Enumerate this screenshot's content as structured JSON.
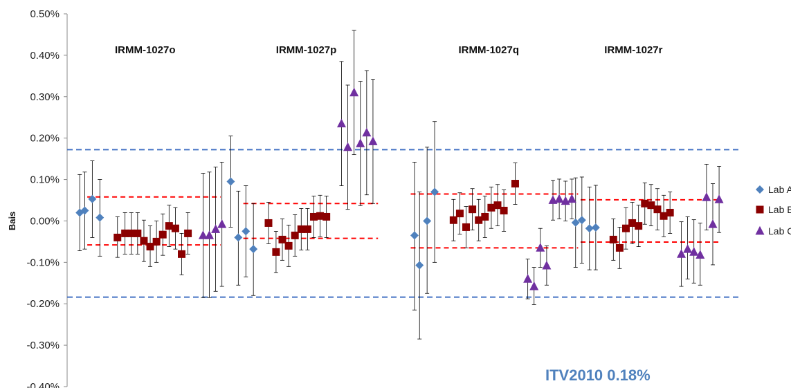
{
  "chart_data": {
    "type": "scatter",
    "ylabel": "Bais",
    "ylim": [
      -0.4,
      0.5
    ],
    "yticks": [
      -0.4,
      -0.3,
      -0.2,
      -0.1,
      0.0,
      0.1,
      0.2,
      0.3,
      0.4,
      0.5
    ],
    "ytick_labels": [
      "-0.40%",
      "-0.30%",
      "-0.20%",
      "-0.10%",
      "0.00%",
      "0.10%",
      "0.20%",
      "0.30%",
      "0.40%",
      "0.50%"
    ],
    "groups": [
      "IRMM-1027o",
      "IRMM-1027p",
      "IRMM-1027q",
      "IRMM-1027r"
    ],
    "annotation": "ITV2010 0.18%",
    "legend_position": "right",
    "colors": {
      "lab_a": "#4f81bd",
      "lab_b": "#8b0000",
      "lab_c": "#7030a0",
      "itv_line": "#4472c4",
      "lab_limit_line": "#ff0000",
      "error_bar": "#000000",
      "annotation": "#4f81bd"
    },
    "itv_limits": [
      0.172,
      -0.184
    ],
    "lab_limits": [
      {
        "group": "IRMM-1027o",
        "upper": 0.058,
        "lower": -0.058
      },
      {
        "group": "IRMM-1027p",
        "upper": 0.042,
        "lower": -0.042
      },
      {
        "group": "IRMM-1027q",
        "upper": 0.065,
        "lower": -0.065
      },
      {
        "group": "IRMM-1027r",
        "upper": 0.051,
        "lower": -0.051
      }
    ],
    "series": [
      {
        "name": "Lab A",
        "marker": "diamond",
        "points": [
          {
            "x": 1.0,
            "y": 0.02,
            "lo": -0.072,
            "hi": 0.112
          },
          {
            "x": 1.4,
            "y": 0.025,
            "lo": -0.068,
            "hi": 0.118
          },
          {
            "x": 2.0,
            "y": 0.053,
            "lo": -0.04,
            "hi": 0.145
          },
          {
            "x": 2.6,
            "y": 0.008,
            "lo": -0.085,
            "hi": 0.1
          },
          {
            "x": 13.0,
            "y": 0.095,
            "lo": -0.015,
            "hi": 0.205
          },
          {
            "x": 13.6,
            "y": -0.04,
            "lo": -0.155,
            "hi": 0.072
          },
          {
            "x": 14.2,
            "y": -0.025,
            "lo": -0.135,
            "hi": 0.085
          },
          {
            "x": 14.8,
            "y": -0.068,
            "lo": -0.18,
            "hi": 0.042
          },
          {
            "x": 27.6,
            "y": -0.035,
            "lo": -0.215,
            "hi": 0.142
          },
          {
            "x": 28.0,
            "y": -0.107,
            "lo": -0.285,
            "hi": 0.07
          },
          {
            "x": 28.6,
            "y": 0.0,
            "lo": -0.175,
            "hi": 0.178
          },
          {
            "x": 29.2,
            "y": 0.07,
            "lo": -0.1,
            "hi": 0.24
          },
          {
            "x": 40.4,
            "y": -0.004,
            "lo": -0.112,
            "hi": 0.104
          },
          {
            "x": 40.9,
            "y": 0.002,
            "lo": -0.102,
            "hi": 0.106
          },
          {
            "x": 41.5,
            "y": -0.018,
            "lo": -0.118,
            "hi": 0.082
          },
          {
            "x": 42.0,
            "y": -0.016,
            "lo": -0.118,
            "hi": 0.086
          }
        ]
      },
      {
        "name": "Lab B",
        "marker": "square",
        "points": [
          {
            "x": 4.0,
            "y": -0.04,
            "lo": -0.088,
            "hi": 0.01
          },
          {
            "x": 4.6,
            "y": -0.03,
            "lo": -0.08,
            "hi": 0.02
          },
          {
            "x": 5.1,
            "y": -0.03,
            "lo": -0.08,
            "hi": 0.02
          },
          {
            "x": 5.6,
            "y": -0.03,
            "lo": -0.08,
            "hi": 0.02
          },
          {
            "x": 6.1,
            "y": -0.048,
            "lo": -0.098,
            "hi": 0.002
          },
          {
            "x": 6.6,
            "y": -0.062,
            "lo": -0.11,
            "hi": -0.012
          },
          {
            "x": 7.1,
            "y": -0.05,
            "lo": -0.1,
            "hi": 0.0
          },
          {
            "x": 7.6,
            "y": -0.033,
            "lo": -0.083,
            "hi": 0.017
          },
          {
            "x": 8.1,
            "y": -0.012,
            "lo": -0.062,
            "hi": 0.038
          },
          {
            "x": 8.6,
            "y": -0.018,
            "lo": -0.068,
            "hi": 0.032
          },
          {
            "x": 9.1,
            "y": -0.08,
            "lo": -0.13,
            "hi": -0.03
          },
          {
            "x": 9.6,
            "y": -0.03,
            "lo": -0.08,
            "hi": 0.02
          },
          {
            "x": 16.0,
            "y": -0.005,
            "lo": -0.055,
            "hi": 0.045
          },
          {
            "x": 16.6,
            "y": -0.075,
            "lo": -0.125,
            "hi": -0.025
          },
          {
            "x": 17.1,
            "y": -0.045,
            "lo": -0.095,
            "hi": 0.005
          },
          {
            "x": 17.6,
            "y": -0.06,
            "lo": -0.11,
            "hi": -0.01
          },
          {
            "x": 18.1,
            "y": -0.035,
            "lo": -0.085,
            "hi": 0.015
          },
          {
            "x": 18.6,
            "y": -0.02,
            "lo": -0.07,
            "hi": 0.03
          },
          {
            "x": 19.1,
            "y": -0.02,
            "lo": -0.07,
            "hi": 0.03
          },
          {
            "x": 19.6,
            "y": 0.01,
            "lo": -0.04,
            "hi": 0.06
          },
          {
            "x": 20.1,
            "y": 0.012,
            "lo": -0.038,
            "hi": 0.062
          },
          {
            "x": 20.6,
            "y": 0.01,
            "lo": -0.04,
            "hi": 0.06
          },
          {
            "x": 30.7,
            "y": 0.002,
            "lo": -0.048,
            "hi": 0.052
          },
          {
            "x": 31.2,
            "y": 0.018,
            "lo": -0.032,
            "hi": 0.068
          },
          {
            "x": 31.7,
            "y": -0.015,
            "lo": -0.065,
            "hi": 0.035
          },
          {
            "x": 32.2,
            "y": 0.028,
            "lo": -0.022,
            "hi": 0.078
          },
          {
            "x": 32.7,
            "y": 0.002,
            "lo": -0.048,
            "hi": 0.052
          },
          {
            "x": 33.2,
            "y": 0.01,
            "lo": -0.04,
            "hi": 0.06
          },
          {
            "x": 33.7,
            "y": 0.032,
            "lo": -0.018,
            "hi": 0.082
          },
          {
            "x": 34.2,
            "y": 0.038,
            "lo": -0.012,
            "hi": 0.088
          },
          {
            "x": 34.7,
            "y": 0.025,
            "lo": -0.025,
            "hi": 0.075
          },
          {
            "x": 35.6,
            "y": 0.09,
            "lo": 0.04,
            "hi": 0.14
          },
          {
            "x": 43.4,
            "y": -0.045,
            "lo": -0.095,
            "hi": 0.005
          },
          {
            "x": 43.9,
            "y": -0.065,
            "lo": -0.115,
            "hi": -0.015
          },
          {
            "x": 44.4,
            "y": -0.018,
            "lo": -0.068,
            "hi": 0.032
          },
          {
            "x": 44.9,
            "y": -0.005,
            "lo": -0.055,
            "hi": 0.045
          },
          {
            "x": 45.4,
            "y": -0.012,
            "lo": -0.062,
            "hi": 0.038
          },
          {
            "x": 45.9,
            "y": 0.042,
            "lo": -0.008,
            "hi": 0.092
          },
          {
            "x": 46.4,
            "y": 0.038,
            "lo": -0.012,
            "hi": 0.088
          },
          {
            "x": 46.9,
            "y": 0.028,
            "lo": -0.022,
            "hi": 0.078
          },
          {
            "x": 47.4,
            "y": 0.012,
            "lo": -0.038,
            "hi": 0.062
          },
          {
            "x": 47.9,
            "y": 0.02,
            "lo": -0.03,
            "hi": 0.07
          }
        ]
      },
      {
        "name": "Lab C",
        "marker": "triangle",
        "points": [
          {
            "x": 10.8,
            "y": -0.035,
            "lo": -0.185,
            "hi": 0.115
          },
          {
            "x": 11.3,
            "y": -0.035,
            "lo": -0.185,
            "hi": 0.118
          },
          {
            "x": 11.8,
            "y": -0.02,
            "lo": -0.17,
            "hi": 0.13
          },
          {
            "x": 12.3,
            "y": -0.008,
            "lo": -0.158,
            "hi": 0.142
          },
          {
            "x": 21.8,
            "y": 0.235,
            "lo": 0.085,
            "hi": 0.385
          },
          {
            "x": 22.3,
            "y": 0.178,
            "lo": 0.028,
            "hi": 0.328
          },
          {
            "x": 22.8,
            "y": 0.31,
            "lo": 0.16,
            "hi": 0.46
          },
          {
            "x": 23.3,
            "y": 0.187,
            "lo": 0.037,
            "hi": 0.337
          },
          {
            "x": 23.8,
            "y": 0.213,
            "lo": 0.063,
            "hi": 0.363
          },
          {
            "x": 24.3,
            "y": 0.192,
            "lo": 0.042,
            "hi": 0.342
          },
          {
            "x": 36.6,
            "y": -0.14,
            "lo": -0.188,
            "hi": -0.092
          },
          {
            "x": 37.1,
            "y": -0.158,
            "lo": -0.202,
            "hi": -0.112
          },
          {
            "x": 37.6,
            "y": -0.065,
            "lo": -0.112,
            "hi": -0.018
          },
          {
            "x": 38.1,
            "y": -0.108,
            "lo": -0.155,
            "hi": -0.06
          },
          {
            "x": 38.6,
            "y": 0.05,
            "lo": 0.002,
            "hi": 0.098
          },
          {
            "x": 39.1,
            "y": 0.053,
            "lo": 0.005,
            "hi": 0.101
          },
          {
            "x": 39.6,
            "y": 0.048,
            "lo": 0.0,
            "hi": 0.096
          },
          {
            "x": 40.1,
            "y": 0.053,
            "lo": 0.005,
            "hi": 0.101
          },
          {
            "x": 48.8,
            "y": -0.08,
            "lo": -0.158,
            "hi": -0.002
          },
          {
            "x": 49.3,
            "y": -0.068,
            "lo": -0.14,
            "hi": 0.01
          },
          {
            "x": 49.8,
            "y": -0.075,
            "lo": -0.15,
            "hi": 0.003
          },
          {
            "x": 50.3,
            "y": -0.082,
            "lo": -0.155,
            "hi": -0.005
          },
          {
            "x": 50.8,
            "y": 0.057,
            "lo": -0.022,
            "hi": 0.137
          },
          {
            "x": 51.3,
            "y": -0.008,
            "lo": -0.106,
            "hi": 0.09
          },
          {
            "x": 51.8,
            "y": 0.052,
            "lo": -0.028,
            "hi": 0.132
          }
        ]
      }
    ]
  }
}
